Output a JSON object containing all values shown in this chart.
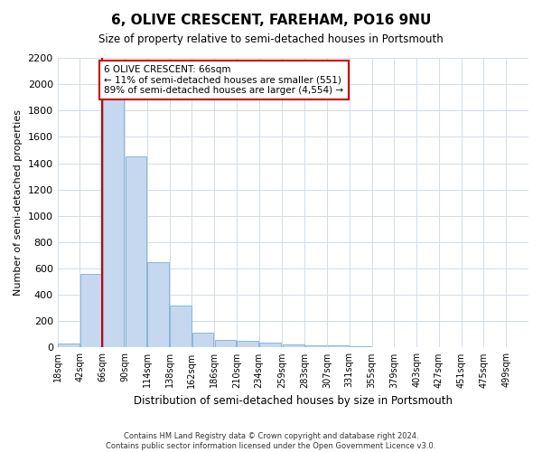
{
  "title": "6, OLIVE CRESCENT, FAREHAM, PO16 9NU",
  "subtitle": "Size of property relative to semi-detached houses in Portsmouth",
  "xlabel": "Distribution of semi-detached houses by size in Portsmouth",
  "ylabel": "Number of semi-detached properties",
  "footer_line1": "Contains HM Land Registry data © Crown copyright and database right 2024.",
  "footer_line2": "Contains public sector information licensed under the Open Government Licence v3.0.",
  "annotation_title": "6 OLIVE CRESCENT: 66sqm",
  "annotation_line1": "← 11% of semi-detached houses are smaller (551)",
  "annotation_line2": "89% of semi-detached houses are larger (4,554) →",
  "property_size_idx": 2,
  "bin_edges": [
    18,
    42,
    66,
    90,
    114,
    138,
    162,
    186,
    210,
    234,
    259,
    283,
    307,
    331,
    355,
    379,
    403,
    427,
    451,
    475,
    499
  ],
  "values": [
    30,
    560,
    1950,
    1450,
    650,
    320,
    110,
    60,
    50,
    40,
    25,
    18,
    15,
    8,
    5,
    3,
    2,
    2,
    1,
    1
  ],
  "bar_color": "#c5d8ef",
  "bar_edge_color": "#7bafd4",
  "vline_color": "#cc0000",
  "annotation_box_edgecolor": "#cc0000",
  "grid_color": "#d0dce8",
  "background_color": "#ffffff",
  "ylim_max": 2200,
  "ytick_step": 200
}
